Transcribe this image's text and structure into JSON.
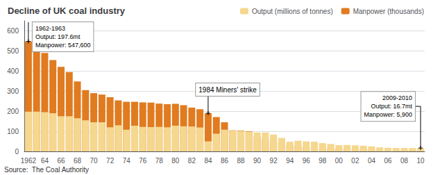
{
  "chart_data": {
    "type": "bar",
    "title": "Decline of UK coal industry",
    "source": "Source:  The Coal Authority",
    "categories": [
      "1962",
      null,
      "64",
      null,
      "66",
      null,
      "68",
      null,
      "70",
      null,
      "72",
      null,
      "74",
      null,
      "76",
      null,
      "78",
      null,
      "80",
      null,
      "82",
      null,
      "84",
      null,
      "86",
      null,
      "88",
      null,
      "90",
      null,
      "92",
      null,
      "94",
      null,
      "96",
      null,
      "98",
      null,
      "00",
      null,
      "02",
      null,
      "04",
      null,
      "06",
      null,
      "08",
      null,
      "10"
    ],
    "series": [
      {
        "name": "Manpower (thousands)",
        "color": "#e07b20",
        "values": [
          547.6,
          511,
          490,
          455,
          421,
          395,
          348,
          305,
          290,
          283,
          270,
          254,
          247,
          247,
          244,
          243,
          238,
          235,
          237,
          230,
          218,
          210,
          190,
          171,
          145,
          105,
          104,
          100,
          73,
          59,
          45,
          42,
          33,
          27,
          22,
          18,
          15,
          14,
          13,
          13,
          12,
          12,
          8,
          7,
          6,
          5,
          5,
          5.9,
          5.9
        ]
      },
      {
        "name": "Output (millions of tonnes)",
        "color": "#f5d78e",
        "values": [
          197.6,
          198,
          195,
          190,
          175,
          175,
          165,
          155,
          145,
          145,
          120,
          130,
          108,
          128,
          122,
          121,
          122,
          120,
          128,
          125,
          124,
          119,
          50,
          88,
          108,
          104,
          102,
          98,
          94,
          94,
          84,
          67,
          48,
          53,
          50,
          48,
          41,
          37,
          31,
          32,
          30,
          28,
          25,
          20,
          18,
          17,
          17,
          16.7,
          16.7
        ]
      }
    ],
    "ylim": [
      0,
      650
    ],
    "yticks": [
      0,
      100,
      200,
      300,
      400,
      500,
      600
    ],
    "grid": true,
    "legend": "upper right",
    "annotations": [
      {
        "text": "1962-1963\nOutput: 197.6mt\nManpower: 547,600",
        "category": "1962"
      },
      {
        "text": "1984 Miners' strike",
        "category": "84"
      },
      {
        "text": "2009-2010\nOutput: 16.7mt\nManpower: 5,900",
        "category": "10"
      }
    ]
  }
}
